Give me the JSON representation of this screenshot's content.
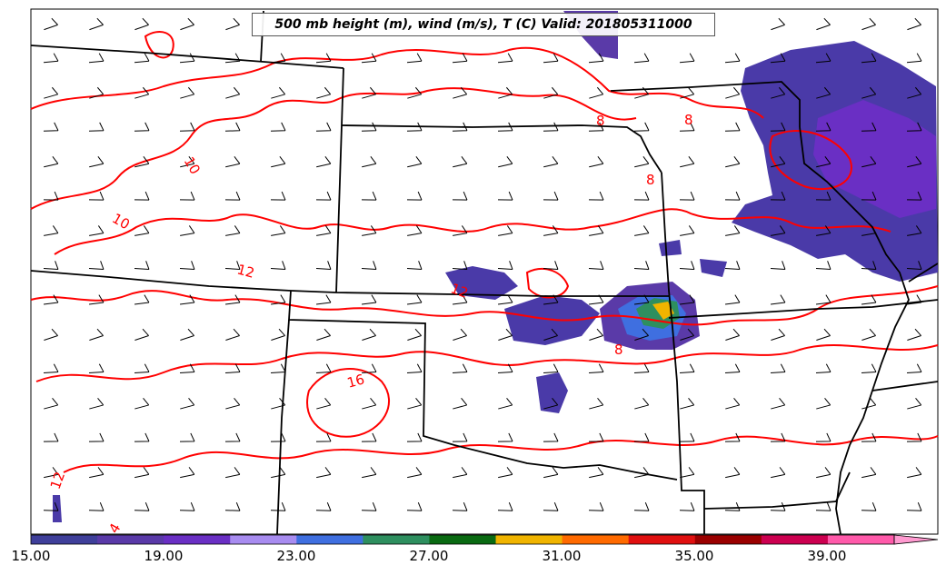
{
  "title": "500 mb height (m), wind (m/s), T (C) Valid: 201805311000",
  "colorbar": {
    "tick_labels": [
      "15.00",
      "19.00",
      "23.00",
      "27.00",
      "31.00",
      "35.00",
      "39.00"
    ],
    "colors": [
      "#3f3f9a",
      "#5a3aa8",
      "#6a2fc4",
      "#a88cf0",
      "#3f6fe0",
      "#2e8f5f",
      "#0a6a12",
      "#f0b400",
      "#ff6a00",
      "#e01010",
      "#9a0000",
      "#cc0050",
      "#ff5aaa"
    ],
    "extend_color": "#ff9ad0"
  },
  "contour_labels": [
    "8",
    "8",
    "8",
    "8",
    "10",
    "10",
    "12",
    "12",
    "16",
    "12",
    "4"
  ],
  "colors": {
    "contour": "#ff0000",
    "borders": "#000000",
    "barbs": "#000000"
  }
}
